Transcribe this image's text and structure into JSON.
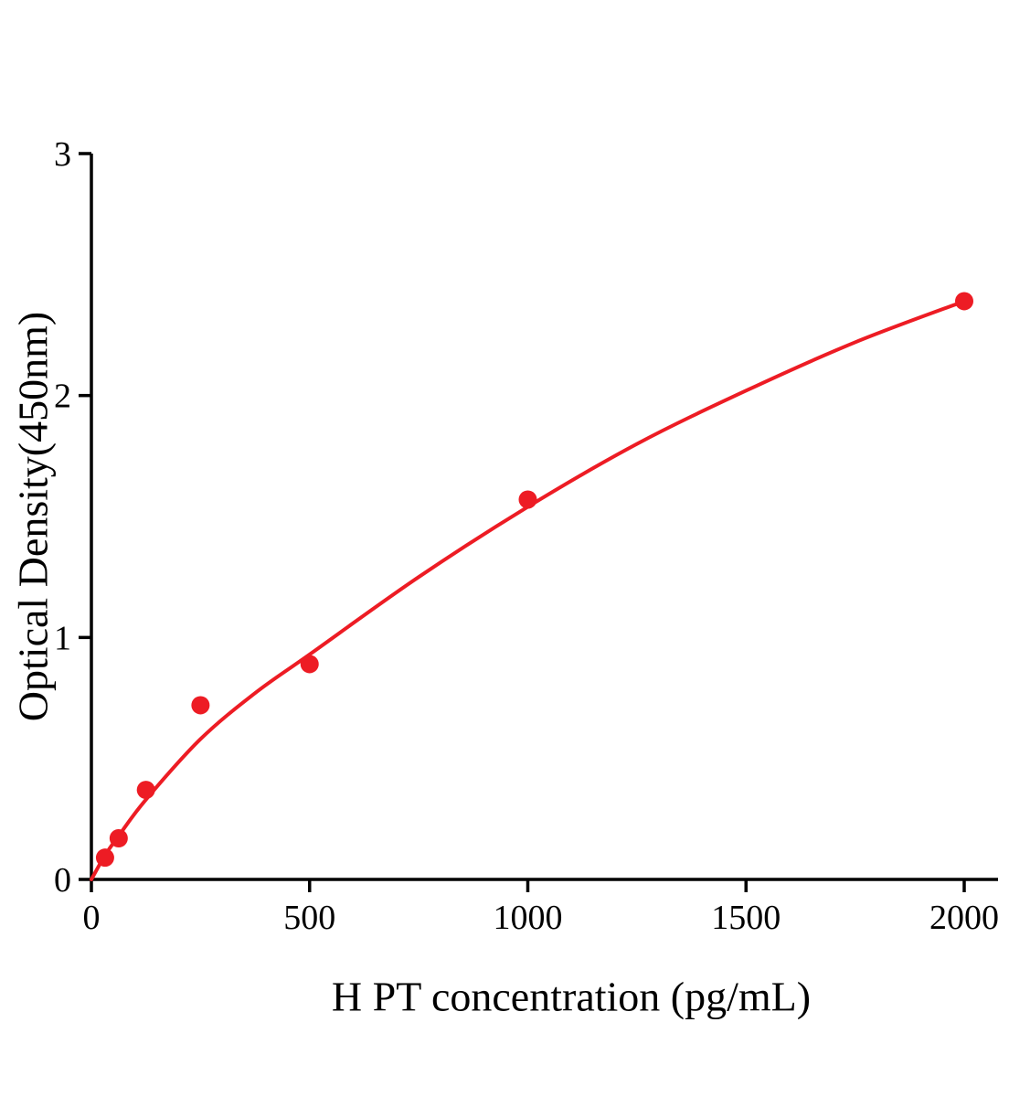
{
  "chart_data": {
    "type": "scatter",
    "title": "",
    "xlabel": "H PT concentration (pg/mL)",
    "ylabel": "Optical Density(450nm)",
    "xlim": [
      0,
      2080
    ],
    "ylim": [
      0,
      3
    ],
    "x_ticks": [
      0,
      500,
      1000,
      1500,
      2000
    ],
    "y_ticks": [
      0,
      1,
      2,
      3
    ],
    "grid": false,
    "legend": "none",
    "series": [
      {
        "name": "standard-curve-points",
        "x": [
          31.25,
          62.5,
          125,
          250,
          500,
          1000,
          2000
        ],
        "y": [
          0.09,
          0.17,
          0.37,
          0.72,
          0.89,
          1.57,
          2.39
        ]
      }
    ],
    "fit_curve": [
      [
        0,
        0.0
      ],
      [
        31.25,
        0.1
      ],
      [
        62.5,
        0.18
      ],
      [
        125,
        0.33
      ],
      [
        250,
        0.58
      ],
      [
        375,
        0.77
      ],
      [
        500,
        0.93
      ],
      [
        750,
        1.25
      ],
      [
        1000,
        1.54
      ],
      [
        1250,
        1.8
      ],
      [
        1500,
        2.02
      ],
      [
        1750,
        2.22
      ],
      [
        2000,
        2.39
      ]
    ],
    "accent_color": "#ed1c24",
    "axis_color": "#000000",
    "marker_radius": 10
  }
}
